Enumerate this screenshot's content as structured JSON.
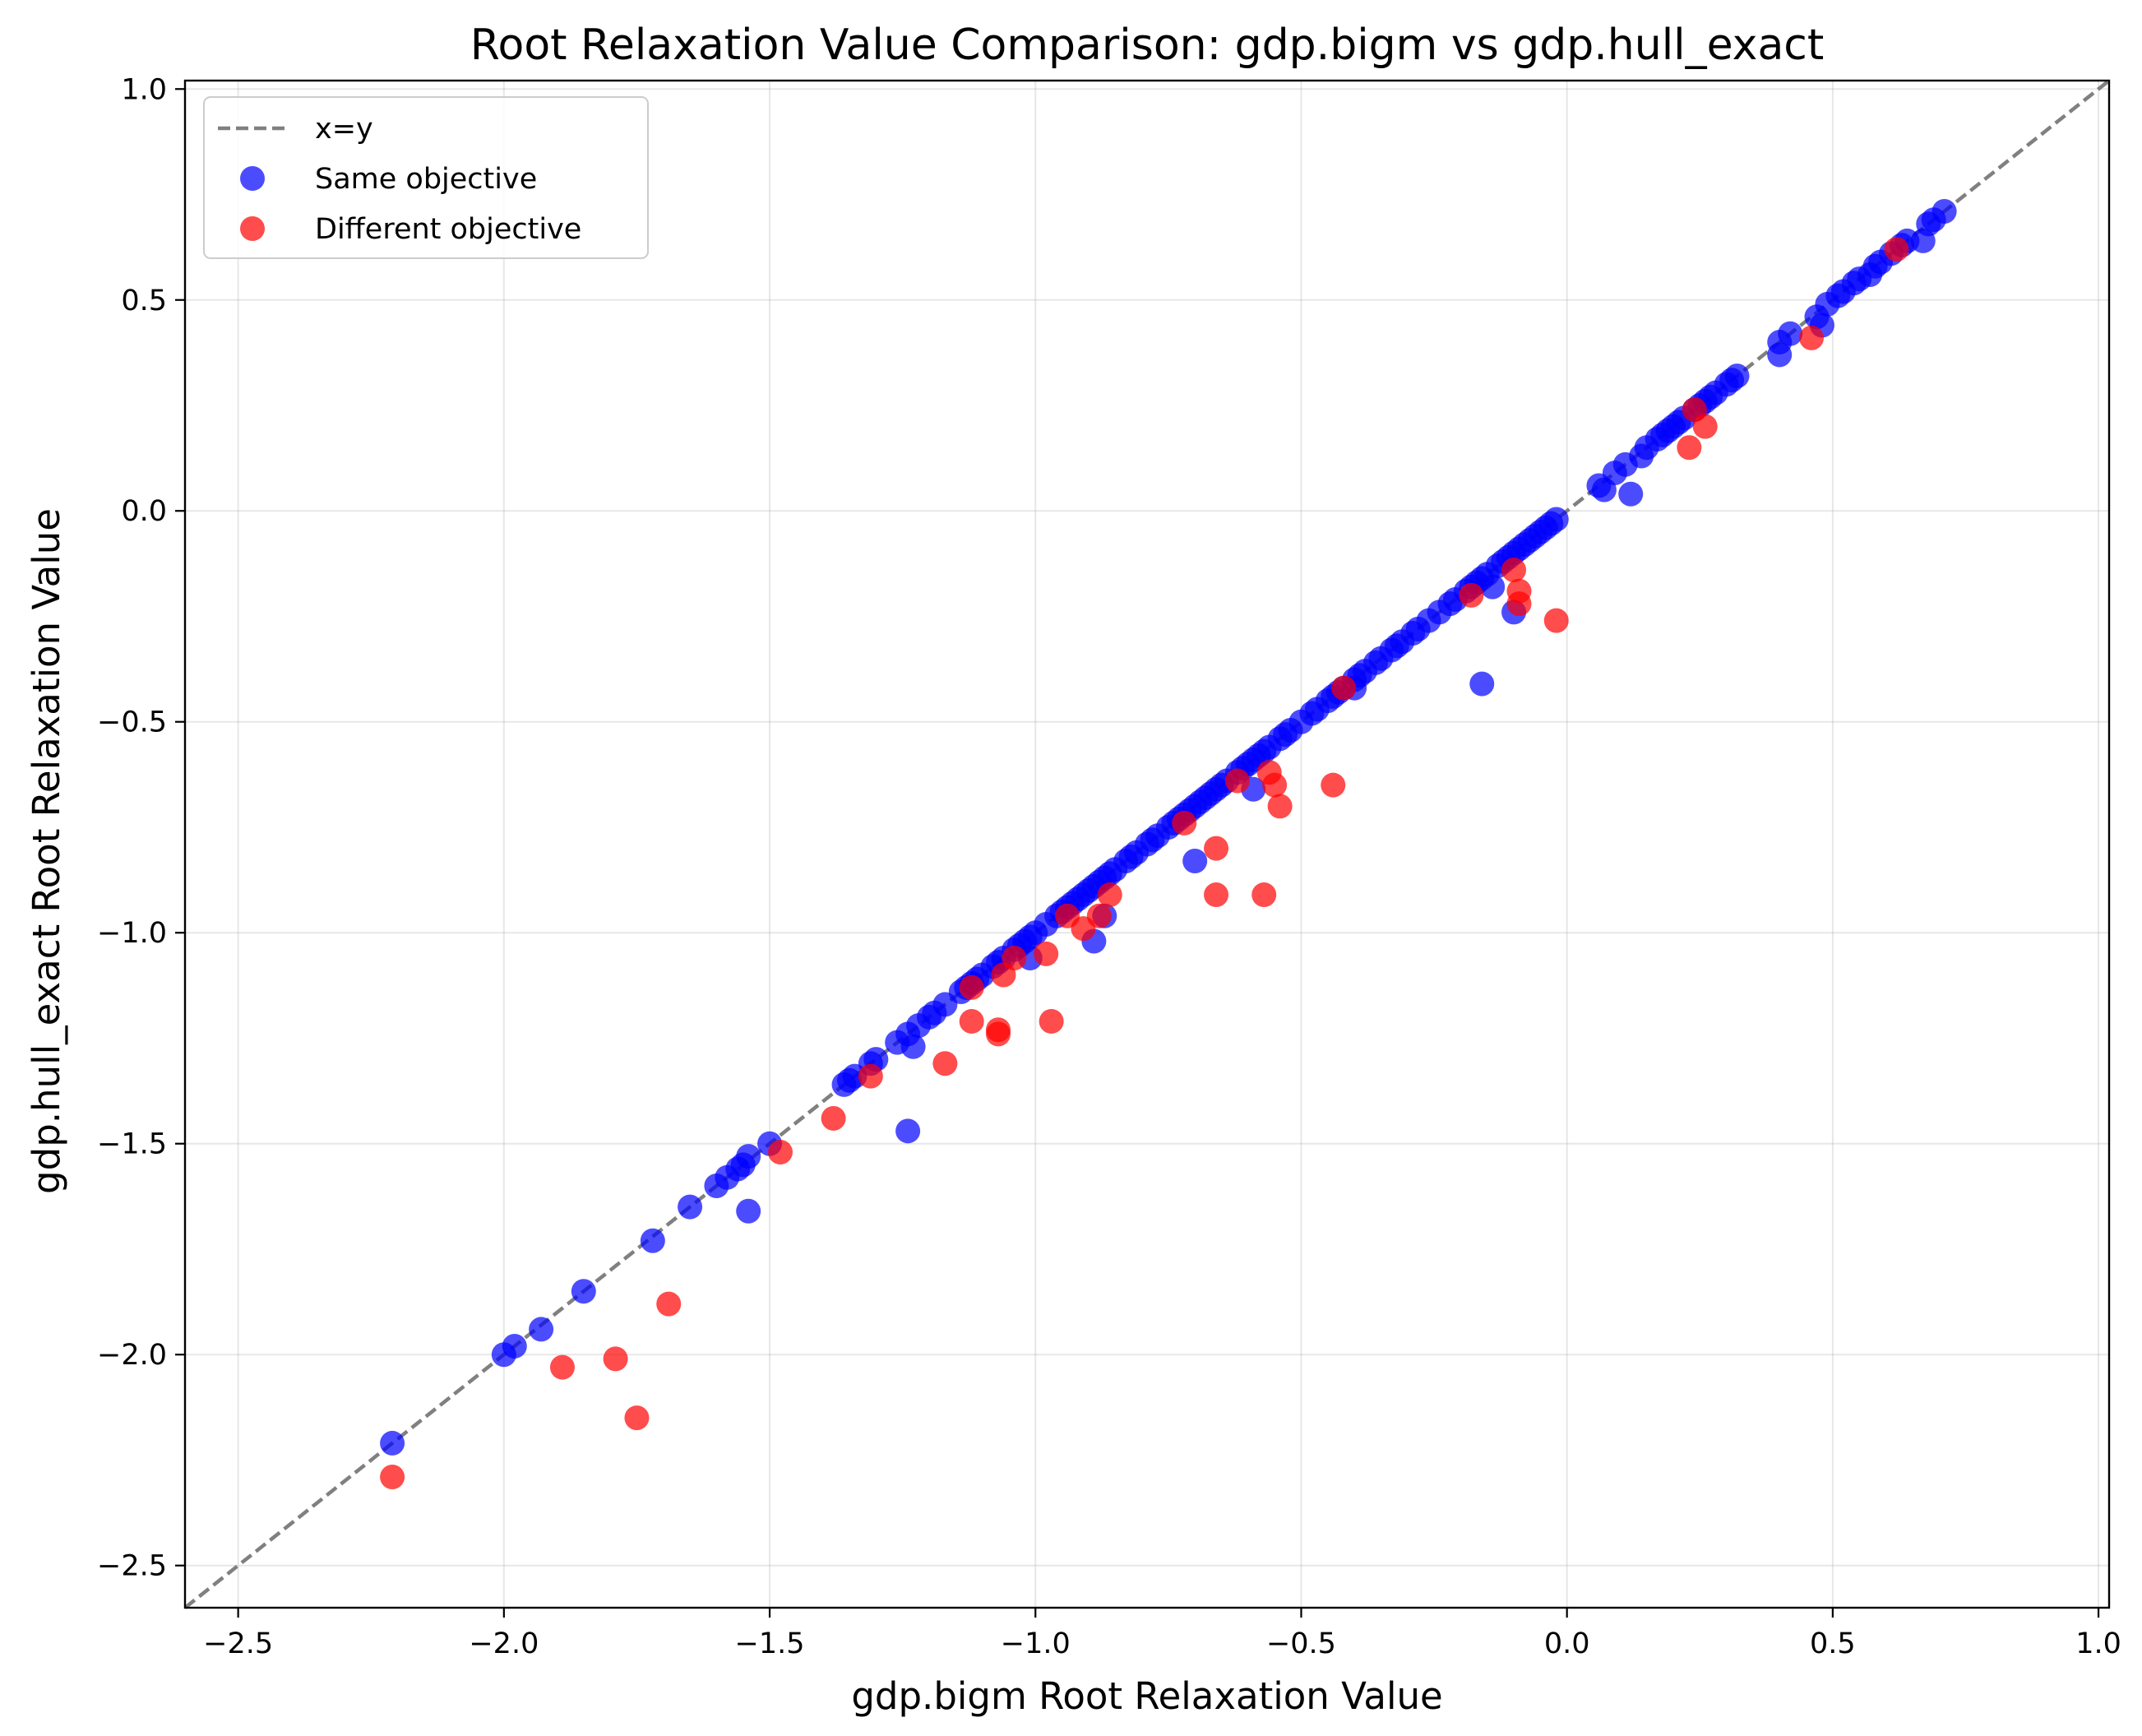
{
  "chart_data": {
    "type": "scatter",
    "title": "Root Relaxation Value Comparison: gdp.bigm vs gdp.hull_exact",
    "xlabel": "gdp.bigm Root Relaxation Value",
    "ylabel": "gdp.hull_exact Root Relaxation Value",
    "xlim": [
      -2.6,
      1.02
    ],
    "ylim": [
      -2.6,
      1.02
    ],
    "xticks": [
      -2.5,
      -2.0,
      -1.5,
      -1.0,
      -0.5,
      0.0,
      0.5,
      1.0
    ],
    "yticks": [
      -2.5,
      -2.0,
      -1.5,
      -1.0,
      -0.5,
      0.0,
      0.5,
      1.0
    ],
    "xtick_labels": [
      "−2.5",
      "−2.0",
      "−1.5",
      "−1.0",
      "−0.5",
      "0.0",
      "0.5",
      "1.0"
    ],
    "ytick_labels": [
      "−2.5",
      "−2.0",
      "−1.5",
      "−1.0",
      "−0.5",
      "0.0",
      "0.5",
      "1.0"
    ],
    "grid": true,
    "legend_position": "top-left",
    "reference_line": {
      "name": "x=y",
      "color": "#808080",
      "style": "dashed"
    },
    "series": [
      {
        "name": "Same objective",
        "color": "#0000ff",
        "points": [
          [
            -2.21,
            -2.21
          ],
          [
            -2.0,
            -2.0
          ],
          [
            -1.98,
            -1.98
          ],
          [
            -1.93,
            -1.94
          ],
          [
            -1.85,
            -1.85
          ],
          [
            -1.72,
            -1.73
          ],
          [
            -1.65,
            -1.65
          ],
          [
            -1.6,
            -1.6
          ],
          [
            -1.58,
            -1.58
          ],
          [
            -1.56,
            -1.56
          ],
          [
            -1.55,
            -1.55
          ],
          [
            -1.54,
            -1.53
          ],
          [
            -1.54,
            -1.66
          ],
          [
            -1.5,
            -1.5
          ],
          [
            -1.36,
            -1.36
          ],
          [
            -1.35,
            -1.35
          ],
          [
            -1.34,
            -1.34
          ],
          [
            -1.31,
            -1.31
          ],
          [
            -1.3,
            -1.3
          ],
          [
            -1.26,
            -1.26
          ],
          [
            -1.24,
            -1.24
          ],
          [
            -1.24,
            -1.47
          ],
          [
            -1.23,
            -1.27
          ],
          [
            -1.22,
            -1.22
          ],
          [
            -1.2,
            -1.2
          ],
          [
            -1.19,
            -1.19
          ],
          [
            -1.17,
            -1.17
          ],
          [
            -1.14,
            -1.14
          ],
          [
            -1.13,
            -1.13
          ],
          [
            -1.12,
            -1.12
          ],
          [
            -1.11,
            -1.11
          ],
          [
            -1.1,
            -1.1
          ],
          [
            -1.08,
            -1.08
          ],
          [
            -1.07,
            -1.07
          ],
          [
            -1.06,
            -1.06
          ],
          [
            -1.04,
            -1.04
          ],
          [
            -1.03,
            -1.03
          ],
          [
            -1.02,
            -1.02
          ],
          [
            -1.01,
            -1.06
          ],
          [
            -1.01,
            -1.01
          ],
          [
            -1.0,
            -1.0
          ],
          [
            -0.98,
            -0.98
          ],
          [
            -0.96,
            -0.96
          ],
          [
            -0.95,
            -0.95
          ],
          [
            -0.94,
            -0.94
          ],
          [
            -0.93,
            -0.93
          ],
          [
            -0.92,
            -0.92
          ],
          [
            -0.91,
            -0.91
          ],
          [
            -0.9,
            -0.9
          ],
          [
            -0.89,
            -0.89
          ],
          [
            -0.89,
            -1.02
          ],
          [
            -0.88,
            -0.88
          ],
          [
            -0.87,
            -0.87
          ],
          [
            -0.87,
            -0.96
          ],
          [
            -0.86,
            -0.86
          ],
          [
            -0.85,
            -0.85
          ],
          [
            -0.83,
            -0.83
          ],
          [
            -0.82,
            -0.82
          ],
          [
            -0.81,
            -0.81
          ],
          [
            -0.79,
            -0.79
          ],
          [
            -0.78,
            -0.78
          ],
          [
            -0.77,
            -0.77
          ],
          [
            -0.75,
            -0.75
          ],
          [
            -0.74,
            -0.74
          ],
          [
            -0.73,
            -0.73
          ],
          [
            -0.72,
            -0.72
          ],
          [
            -0.71,
            -0.71
          ],
          [
            -0.7,
            -0.7
          ],
          [
            -0.7,
            -0.83
          ],
          [
            -0.69,
            -0.69
          ],
          [
            -0.68,
            -0.68
          ],
          [
            -0.67,
            -0.67
          ],
          [
            -0.66,
            -0.66
          ],
          [
            -0.65,
            -0.65
          ],
          [
            -0.64,
            -0.64
          ],
          [
            -0.62,
            -0.62
          ],
          [
            -0.61,
            -0.61
          ],
          [
            -0.6,
            -0.6
          ],
          [
            -0.59,
            -0.59
          ],
          [
            -0.59,
            -0.66
          ],
          [
            -0.58,
            -0.58
          ],
          [
            -0.57,
            -0.57
          ],
          [
            -0.56,
            -0.56
          ],
          [
            -0.54,
            -0.54
          ],
          [
            -0.53,
            -0.53
          ],
          [
            -0.52,
            -0.52
          ],
          [
            -0.5,
            -0.5
          ],
          [
            -0.48,
            -0.48
          ],
          [
            -0.47,
            -0.47
          ],
          [
            -0.45,
            -0.45
          ],
          [
            -0.44,
            -0.44
          ],
          [
            -0.43,
            -0.43
          ],
          [
            -0.42,
            -0.42
          ],
          [
            -0.4,
            -0.4
          ],
          [
            -0.4,
            -0.42
          ],
          [
            -0.39,
            -0.39
          ],
          [
            -0.38,
            -0.38
          ],
          [
            -0.36,
            -0.36
          ],
          [
            -0.35,
            -0.35
          ],
          [
            -0.33,
            -0.33
          ],
          [
            -0.32,
            -0.32
          ],
          [
            -0.31,
            -0.31
          ],
          [
            -0.29,
            -0.29
          ],
          [
            -0.28,
            -0.28
          ],
          [
            -0.26,
            -0.26
          ],
          [
            -0.24,
            -0.24
          ],
          [
            -0.22,
            -0.22
          ],
          [
            -0.21,
            -0.21
          ],
          [
            -0.19,
            -0.19
          ],
          [
            -0.18,
            -0.18
          ],
          [
            -0.17,
            -0.17
          ],
          [
            -0.16,
            -0.16
          ],
          [
            -0.16,
            -0.41
          ],
          [
            -0.15,
            -0.15
          ],
          [
            -0.14,
            -0.18
          ],
          [
            -0.13,
            -0.13
          ],
          [
            -0.12,
            -0.12
          ],
          [
            -0.11,
            -0.11
          ],
          [
            -0.1,
            -0.24
          ],
          [
            -0.1,
            -0.1
          ],
          [
            -0.09,
            -0.09
          ],
          [
            -0.08,
            -0.08
          ],
          [
            -0.07,
            -0.07
          ],
          [
            -0.06,
            -0.06
          ],
          [
            -0.05,
            -0.05
          ],
          [
            -0.04,
            -0.04
          ],
          [
            -0.03,
            -0.03
          ],
          [
            -0.02,
            -0.02
          ],
          [
            0.06,
            0.06
          ],
          [
            0.07,
            0.05
          ],
          [
            0.09,
            0.09
          ],
          [
            0.11,
            0.11
          ],
          [
            0.12,
            0.04
          ],
          [
            0.14,
            0.13
          ],
          [
            0.15,
            0.15
          ],
          [
            0.17,
            0.17
          ],
          [
            0.18,
            0.18
          ],
          [
            0.19,
            0.19
          ],
          [
            0.2,
            0.2
          ],
          [
            0.21,
            0.21
          ],
          [
            0.22,
            0.22
          ],
          [
            0.24,
            0.24
          ],
          [
            0.25,
            0.25
          ],
          [
            0.26,
            0.26
          ],
          [
            0.27,
            0.27
          ],
          [
            0.28,
            0.28
          ],
          [
            0.3,
            0.3
          ],
          [
            0.31,
            0.31
          ],
          [
            0.32,
            0.32
          ],
          [
            0.4,
            0.37
          ],
          [
            0.4,
            0.4
          ],
          [
            0.42,
            0.42
          ],
          [
            0.47,
            0.46
          ],
          [
            0.48,
            0.44
          ],
          [
            0.49,
            0.49
          ],
          [
            0.51,
            0.51
          ],
          [
            0.52,
            0.52
          ],
          [
            0.54,
            0.54
          ],
          [
            0.55,
            0.55
          ],
          [
            0.57,
            0.56
          ],
          [
            0.58,
            0.58
          ],
          [
            0.59,
            0.59
          ],
          [
            0.61,
            0.61
          ],
          [
            0.63,
            0.63
          ],
          [
            0.64,
            0.64
          ],
          [
            0.67,
            0.64
          ],
          [
            0.68,
            0.68
          ],
          [
            0.69,
            0.69
          ],
          [
            0.71,
            0.71
          ]
        ]
      },
      {
        "name": "Different objective",
        "color": "#ff0000",
        "points": [
          [
            -2.21,
            -2.29
          ],
          [
            -1.89,
            -2.03
          ],
          [
            -1.79,
            -2.01
          ],
          [
            -1.75,
            -2.15
          ],
          [
            -1.69,
            -1.88
          ],
          [
            -1.48,
            -1.52
          ],
          [
            -1.38,
            -1.44
          ],
          [
            -1.31,
            -1.34
          ],
          [
            -1.17,
            -1.31
          ],
          [
            -1.12,
            -1.13
          ],
          [
            -1.12,
            -1.21
          ],
          [
            -1.07,
            -1.23
          ],
          [
            -1.07,
            -1.24
          ],
          [
            -1.06,
            -1.1
          ],
          [
            -1.04,
            -1.06
          ],
          [
            -0.98,
            -1.05
          ],
          [
            -0.97,
            -1.21
          ],
          [
            -0.94,
            -0.96
          ],
          [
            -0.91,
            -0.99
          ],
          [
            -0.88,
            -0.96
          ],
          [
            -0.86,
            -0.91
          ],
          [
            -0.72,
            -0.74
          ],
          [
            -0.66,
            -0.8
          ],
          [
            -0.66,
            -0.91
          ],
          [
            -0.62,
            -0.64
          ],
          [
            -0.57,
            -0.91
          ],
          [
            -0.56,
            -0.62
          ],
          [
            -0.55,
            -0.65
          ],
          [
            -0.54,
            -0.7
          ],
          [
            -0.44,
            -0.65
          ],
          [
            -0.42,
            -0.42
          ],
          [
            -0.18,
            -0.2
          ],
          [
            -0.1,
            -0.14
          ],
          [
            -0.09,
            -0.19
          ],
          [
            -0.09,
            -0.22
          ],
          [
            -0.02,
            -0.26
          ],
          [
            0.23,
            0.15
          ],
          [
            0.24,
            0.24
          ],
          [
            0.26,
            0.2
          ],
          [
            0.46,
            0.41
          ],
          [
            0.62,
            0.62
          ]
        ]
      }
    ]
  }
}
